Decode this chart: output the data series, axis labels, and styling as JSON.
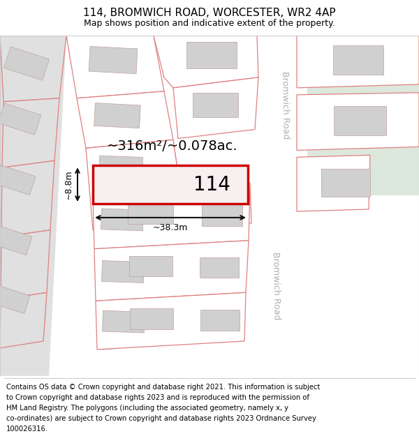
{
  "title": "114, BROMWICH ROAD, WORCESTER, WR2 4AP",
  "subtitle": "Map shows position and indicative extent of the property.",
  "footer_lines": [
    "Contains OS data © Crown copyright and database right 2021. This information is subject",
    "to Crown copyright and database rights 2023 and is reproduced with the permission of",
    "HM Land Registry. The polygons (including the associated geometry, namely x, y",
    "co-ordinates) are subject to Crown copyright and database rights 2023 Ordnance Survey",
    "100026316."
  ],
  "map_bg": "#f0f0f0",
  "road_bg": "#e0e0e0",
  "green_area": "#dce8dc",
  "building_fill": "#d0d0d0",
  "building_edge": "#c0a0a0",
  "plot_edge": "#e08080",
  "highlight_fill": "#f8f0f0",
  "highlight_edge": "#cc0000",
  "dim_color": "#111111",
  "road_label_color": "#b0b0b0",
  "area_label": "~316m²/~0.078ac.",
  "number_label": "114",
  "dim_width": "~38.3m",
  "dim_height": "~8.8m",
  "bromwich_road_label": "Bromwich Road",
  "title_fontsize": 11,
  "subtitle_fontsize": 9,
  "footer_fontsize": 7.2
}
